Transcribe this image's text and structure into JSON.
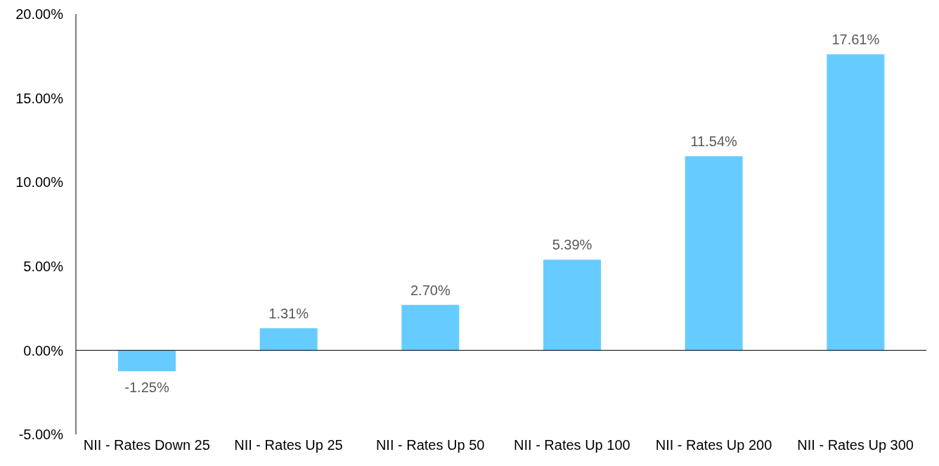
{
  "chart_data": {
    "type": "bar",
    "categories": [
      "NII - Rates Down 25",
      "NII - Rates Up 25",
      "NII - Rates Up 50",
      "NII - Rates Up 100",
      "NII - Rates Up 200",
      "NII - Rates Up 300"
    ],
    "values": [
      -1.25,
      1.31,
      2.7,
      5.39,
      11.54,
      17.61
    ],
    "value_labels": [
      "-1.25%",
      "1.31%",
      "2.70%",
      "5.39%",
      "11.54%",
      "17.61%"
    ],
    "color": "#66ccff",
    "ylim": [
      -5,
      20
    ],
    "yticks": [
      {
        "value": -5,
        "label": "-5.00%"
      },
      {
        "value": 0,
        "label": "0.00%"
      },
      {
        "value": 5,
        "label": "5.00%"
      },
      {
        "value": 10,
        "label": "10.00%"
      },
      {
        "value": 15,
        "label": "15.00%"
      },
      {
        "value": 20,
        "label": "20.00%"
      }
    ],
    "legend": false
  }
}
